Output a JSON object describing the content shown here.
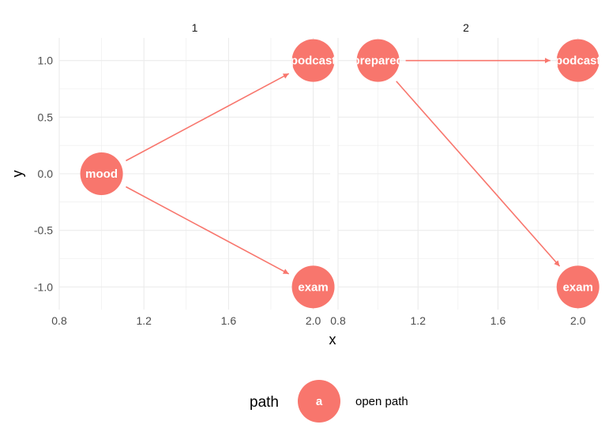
{
  "chart_data": {
    "type": "scatter",
    "xlabel": "x",
    "ylabel": "y",
    "xlim": [
      0.8,
      2.08
    ],
    "ylim": [
      -1.2,
      1.2
    ],
    "x_ticks": [
      0.8,
      1.2,
      1.6,
      2.0
    ],
    "x_tick_labels": [
      "0.8",
      "1.2",
      "1.6",
      "2.0"
    ],
    "y_ticks": [
      1.0,
      0.5,
      0.0,
      -0.5,
      -1.0
    ],
    "y_tick_labels": [
      "1.0",
      "0.5",
      "0.0",
      "-0.5",
      "-1.0"
    ],
    "grid": true,
    "panels": [
      {
        "strip": "1",
        "nodes": [
          {
            "label": "mood",
            "x": 1.0,
            "y": 0.0
          },
          {
            "label": "podcast",
            "x": 2.0,
            "y": 1.0
          },
          {
            "label": "exam",
            "x": 2.0,
            "y": -1.0
          }
        ],
        "edges": [
          {
            "from": "mood",
            "to": "podcast"
          },
          {
            "from": "mood",
            "to": "exam"
          }
        ]
      },
      {
        "strip": "2",
        "nodes": [
          {
            "label": "prepared",
            "x": 1.0,
            "y": 1.0
          },
          {
            "label": "podcast",
            "x": 2.0,
            "y": 1.0
          },
          {
            "label": "exam",
            "x": 2.0,
            "y": -1.0
          }
        ],
        "edges": [
          {
            "from": "prepared",
            "to": "podcast"
          },
          {
            "from": "prepared",
            "to": "exam"
          }
        ]
      }
    ],
    "legend": {
      "title": "path",
      "key_label": "a",
      "entry": "open path",
      "placement": "bottom"
    },
    "colors": {
      "node": "#F8766D",
      "edge": "#F8766D",
      "grid": "#EBEBEB"
    }
  }
}
